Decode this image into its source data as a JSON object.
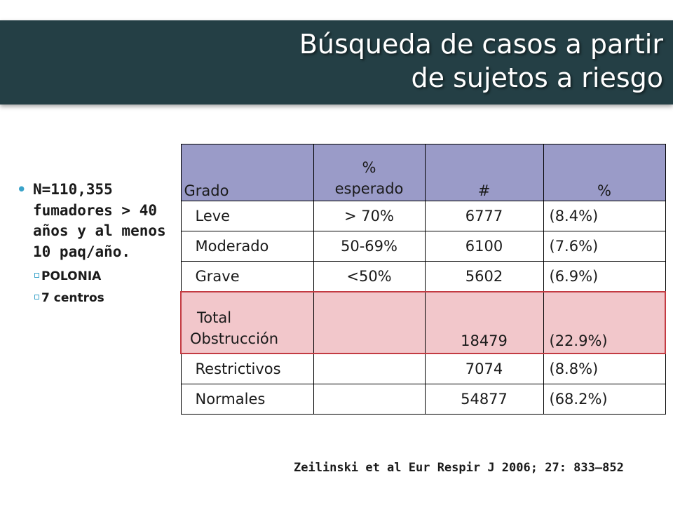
{
  "slide": {
    "title_line1": "Búsqueda de casos a partir",
    "title_line2": "de sujetos a riesgo"
  },
  "bullets": {
    "main_marker": "•",
    "main": "N=110,355 fumadores > 40 años y al menos 10 paq/año.",
    "sub": [
      "POLONIA",
      "7 centros"
    ]
  },
  "table": {
    "headers": [
      "Grado",
      "% esperado",
      "#",
      "%"
    ],
    "header_esperado_line1": "%",
    "header_esperado_line2": "esperado",
    "rows": [
      {
        "grado": "Leve",
        "esperado": "> 70%",
        "n": "6777",
        "pct": "(8.4%)"
      },
      {
        "grado": "Moderado",
        "esperado": "50-69%",
        "n": "6100",
        "pct": "(7.6%)"
      },
      {
        "grado": "Grave",
        "esperado": "<50%",
        "n": "5602",
        "pct": "(6.9%)"
      },
      {
        "grado_line1": "Total",
        "grado_line2": "Obstrucción",
        "esperado": "",
        "n": "18479",
        "pct": "(22.9%)"
      },
      {
        "grado": "Restrictivos",
        "esperado": "",
        "n": "7074",
        "pct": "(8.8%)"
      },
      {
        "grado": "Normales",
        "esperado": "",
        "n": "54877",
        "pct": "(68.2%)"
      }
    ],
    "colors": {
      "header_bg": "#9a9bc8",
      "highlight_bg": "#f2c7cb",
      "highlight_border": "#c33b42"
    }
  },
  "citation": "Zeilinski et al Eur Respir J 2006; 27: 833–852",
  "theme": {
    "title_bar": "#243f45",
    "bullet_accent": "#3aa3c9"
  }
}
